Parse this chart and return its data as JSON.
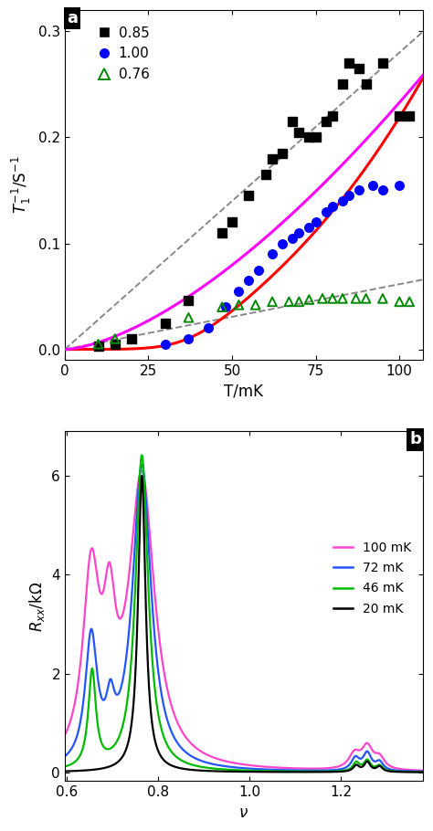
{
  "panel_a": {
    "xlabel": "T/mK",
    "ylabel": "$T_1^{-1}$/S$^{-1}$",
    "xlim": [
      0,
      107
    ],
    "ylim": [
      -0.01,
      0.32
    ],
    "xticks": [
      0,
      25,
      50,
      75,
      100
    ],
    "yticks": [
      0.0,
      0.1,
      0.2,
      0.3
    ],
    "scatter_085": {
      "x": [
        10,
        15,
        20,
        30,
        37,
        47,
        50,
        55,
        60,
        62,
        65,
        68,
        70,
        73,
        75,
        78,
        80,
        83,
        85,
        88,
        90,
        95,
        100,
        103
      ],
      "y": [
        0.003,
        0.005,
        0.01,
        0.025,
        0.046,
        0.11,
        0.12,
        0.145,
        0.165,
        0.18,
        0.185,
        0.215,
        0.205,
        0.2,
        0.2,
        0.215,
        0.22,
        0.25,
        0.27,
        0.265,
        0.25,
        0.27,
        0.22,
        0.22
      ],
      "color": "black",
      "label": "0.85",
      "marker": "s"
    },
    "scatter_100": {
      "x": [
        30,
        37,
        43,
        48,
        52,
        55,
        58,
        62,
        65,
        68,
        70,
        73,
        75,
        78,
        80,
        83,
        85,
        88,
        92,
        95,
        100
      ],
      "y": [
        0.005,
        0.01,
        0.02,
        0.04,
        0.055,
        0.065,
        0.075,
        0.09,
        0.1,
        0.105,
        0.11,
        0.115,
        0.12,
        0.13,
        0.135,
        0.14,
        0.145,
        0.15,
        0.155,
        0.15,
        0.155
      ],
      "color": "#0000ff",
      "label": "1.00",
      "marker": "o"
    },
    "scatter_076": {
      "x": [
        10,
        15,
        37,
        47,
        52,
        57,
        62,
        67,
        70,
        73,
        77,
        80,
        83,
        87,
        90,
        95,
        100,
        103
      ],
      "y": [
        0.005,
        0.01,
        0.03,
        0.04,
        0.042,
        0.042,
        0.045,
        0.045,
        0.045,
        0.047,
        0.048,
        0.048,
        0.048,
        0.048,
        0.048,
        0.048,
        0.045,
        0.045
      ],
      "color": "#008800",
      "label": "0.76",
      "marker": "^"
    },
    "fit_red_color": "#ff0000",
    "fit_red_lw": 2.2,
    "fit_magenta_color": "#ff00ff",
    "fit_magenta_lw": 2.2,
    "dash_color": "#888888",
    "dash_lw": 1.4,
    "dash_ls": "--"
  },
  "panel_b": {
    "xlabel": "$\\nu$",
    "ylabel": "$R_{xx}$/k$\\Omega$",
    "xlim": [
      0.595,
      1.38
    ],
    "ylim": [
      -0.18,
      6.9
    ],
    "xticks": [
      0.6,
      0.8,
      1.0,
      1.2
    ],
    "xtick_labels": [
      "0.6",
      "0.8",
      "1.0",
      "1.2"
    ],
    "yticks": [
      0,
      2,
      4,
      6
    ],
    "color_100": "#ff44cc",
    "color_72": "#2255ff",
    "color_46": "#00bb00",
    "color_20": "#000000",
    "labels": [
      "100 mK",
      "72 mK",
      "46 mK",
      "20 mK"
    ]
  }
}
